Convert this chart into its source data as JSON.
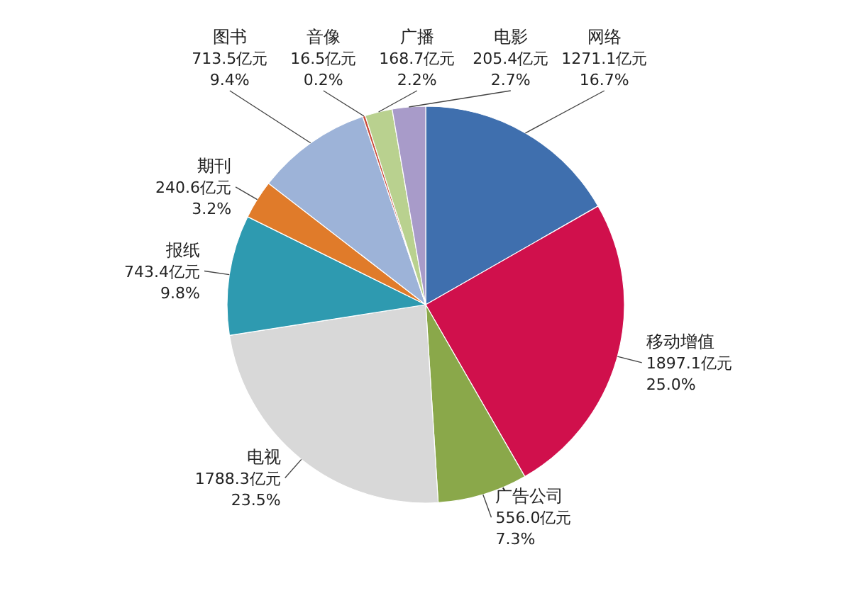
{
  "chart_data": {
    "type": "pie",
    "legend": false,
    "categories": [
      "网络",
      "移动增值",
      "广告公司",
      "电视",
      "报纸",
      "期刊",
      "图书",
      "音像",
      "广播",
      "电影"
    ],
    "values": [
      1271.1,
      1897.1,
      556.0,
      1788.3,
      743.4,
      240.6,
      713.5,
      16.5,
      168.7,
      205.4
    ],
    "value_labels": [
      "1271.1亿元\n16.7%",
      "1897.1亿元\n25.0%",
      "556.0亿元\n7.3%",
      "1788.3亿元\n23.5%",
      "743.4亿元\n9.8%",
      "240.6亿元\n3.2%",
      "713.5亿元\n9.4%",
      "16.5亿元\n0.2%",
      "168.7亿元\n2.2%",
      "205.4亿元\n2.7%"
    ],
    "colors": [
      "#3f6fae",
      "#d0104c",
      "#8aa84a",
      "#d8d8d8",
      "#2e9ab0",
      "#e07b2a",
      "#9db3d8",
      "#c84a3a",
      "#b9d18f",
      "#a89bc9"
    ]
  }
}
